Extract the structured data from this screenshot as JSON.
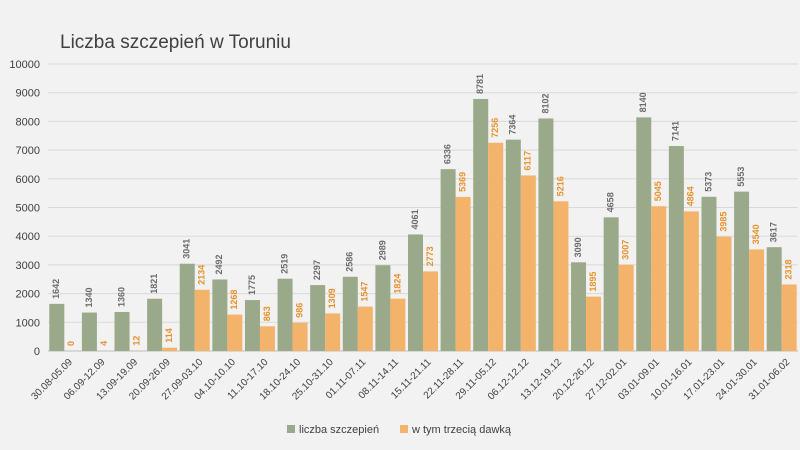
{
  "chart_data": {
    "type": "bar",
    "title": "Liczba szczepień w Toruniu",
    "xlabel": "",
    "ylabel": "",
    "ylim": [
      0,
      10000
    ],
    "yticks": [
      0,
      1000,
      2000,
      3000,
      4000,
      5000,
      6000,
      7000,
      8000,
      9000,
      10000
    ],
    "grid": true,
    "legend_position": "bottom",
    "categories": [
      "30.08-05.09",
      "06.09-12.09",
      "13.09-19.09",
      "20.09-26.09",
      "27.09-03.10",
      "04.10-10.10",
      "11.10-17.10",
      "18.10-24.10",
      "25.10-31.10",
      "01.11-07.11",
      "08.11-14.11",
      "15.11-21.11",
      "22.11-28.11",
      "29.11-05.12",
      "06.12-12.12",
      "13.12-19.12",
      "20.12-26.12",
      "27.12-02.01",
      "03.01-09.01",
      "10.01-16.01",
      "17.01-23.01",
      "24.01-30.01",
      "31.01-06.02"
    ],
    "series": [
      {
        "name": "liczba szczepień",
        "color": "#9aa98a",
        "label_color": "#6b6b6b",
        "values": [
          1642,
          1340,
          1360,
          1821,
          3041,
          2492,
          1775,
          2519,
          2297,
          2586,
          2989,
          4061,
          6336,
          8781,
          7364,
          8102,
          3090,
          4658,
          8140,
          7141,
          5373,
          5553,
          3617
        ]
      },
      {
        "name": "w tym trzecią dawką",
        "color": "#f4b36a",
        "label_color": "#e8912c",
        "values": [
          0,
          4,
          12,
          114,
          2134,
          1268,
          863,
          986,
          1309,
          1547,
          1824,
          2773,
          5369,
          7256,
          6117,
          5216,
          1895,
          3007,
          5045,
          4864,
          3985,
          3540,
          2318
        ]
      }
    ]
  }
}
